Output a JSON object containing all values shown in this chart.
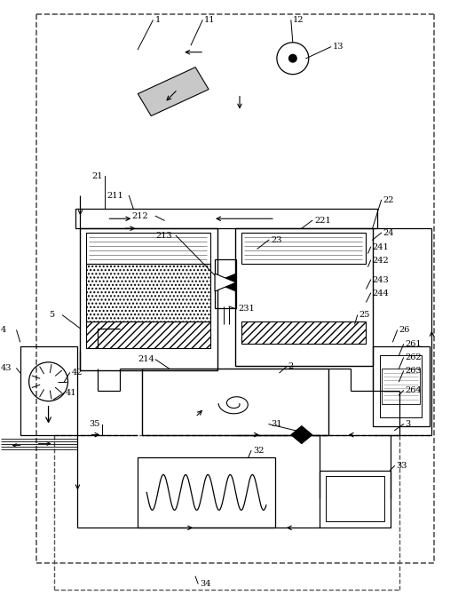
{
  "background": "#ffffff",
  "line_color": "#000000",
  "fig_width": 5.34,
  "fig_height": 6.79
}
